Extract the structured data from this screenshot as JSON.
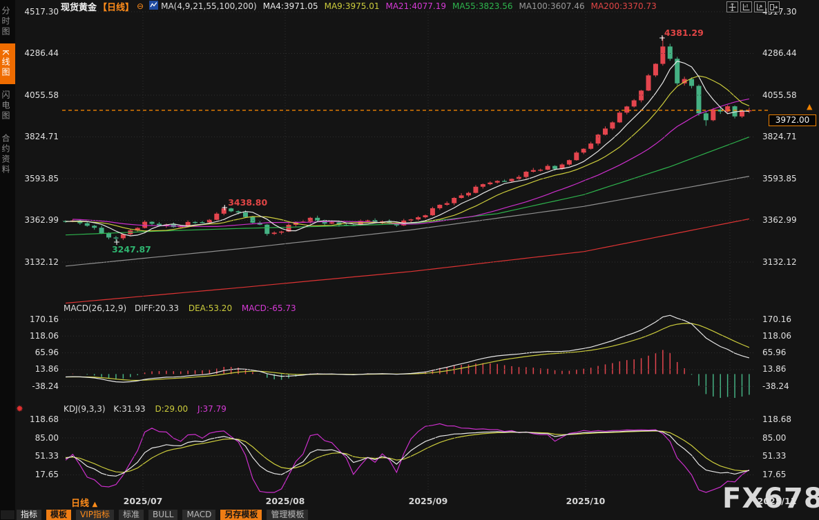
{
  "header": {
    "symbol": "现货黄金",
    "period_tag": "【日线】",
    "circle_icon": "⊖",
    "ma_label": "MA(4,9,21,55,100,200)",
    "ma_values": [
      {
        "label": "MA4:3971.05",
        "color": "#e8e8e8"
      },
      {
        "label": "MA9:3975.01",
        "color": "#cdcd3c"
      },
      {
        "label": "MA21:4077.19",
        "color": "#d63ad6"
      },
      {
        "label": "MA55:3823.56",
        "color": "#2eb44d"
      },
      {
        "label": "MA100:3607.46",
        "color": "#9a9a9a"
      },
      {
        "label": "MA200:3370.73",
        "color": "#e04545"
      }
    ]
  },
  "sidebar": {
    "items": [
      {
        "label": "分时图",
        "active": false
      },
      {
        "label": "K线图",
        "active": true
      },
      {
        "label": "闪电图",
        "active": false
      },
      {
        "label": "合约资料",
        "active": false
      }
    ]
  },
  "main_axis": {
    "labels": [
      "4517.30",
      "4286.44",
      "4055.58",
      "3824.71",
      "3593.85",
      "3362.99",
      "3132.12"
    ]
  },
  "markers": {
    "high": {
      "text": "4381.29",
      "index": 83,
      "color": "#e04545"
    },
    "swing_high": {
      "text": "3438.80",
      "index": 22,
      "color": "#e04545"
    },
    "swing_low": {
      "text": "3247.87",
      "index": 7,
      "color": "#2eb46f"
    },
    "current": {
      "text": "3972.00"
    },
    "current_arrow": "▲"
  },
  "macd_panel": {
    "legend": {
      "title": "MACD(26,12,9)",
      "diff": "DIFF:20.33",
      "dea": "DEA:53.20",
      "macd": "MACD:-65.73"
    },
    "axis": [
      "170.16",
      "118.06",
      "65.96",
      "13.86",
      "-38.24"
    ]
  },
  "kdj_panel": {
    "legend": {
      "title": "KDJ(9,3,3)",
      "k": "K:31.93",
      "d": "D:29.00",
      "j": "J:37.79"
    },
    "axis": [
      "118.68",
      "85.00",
      "51.33",
      "17.65"
    ]
  },
  "xaxis": {
    "labels": [
      "2025/07",
      "2025/08",
      "2025/09",
      "2025/10",
      "2025/11"
    ]
  },
  "period_button": {
    "label": "日线",
    "arrow": "▲"
  },
  "toolbar": {
    "tabs": [
      {
        "label": "指标",
        "style": "first"
      },
      {
        "label": "模板",
        "style": "hl"
      },
      {
        "label": "VIP指标",
        "style": "vip"
      },
      {
        "label": "标准",
        "style": ""
      },
      {
        "label": "BULL",
        "style": ""
      },
      {
        "label": "MACD",
        "style": ""
      },
      {
        "label": "另存模板",
        "style": "hl"
      },
      {
        "label": "管理模板",
        "style": ""
      }
    ]
  },
  "watermark": "FX678",
  "colors": {
    "up": "#e4454e",
    "down": "#45b183",
    "ma4": "#e8e8e8",
    "ma9": "#cdcd3c",
    "ma21": "#cc2fcc",
    "ma55": "#2eb44d",
    "ma100": "#909090",
    "ma200": "#dd3333",
    "grid": "#2f2f2f",
    "accent_orange": "#ef8200",
    "k_line": "#e8e8e8",
    "d_line": "#cdcd3c",
    "j_line": "#cc2fcc"
  },
  "chart_data": {
    "type": "candlestick",
    "title": "现货黄金 日线 (Spot Gold daily)",
    "x_months": [
      "2025/07",
      "2025/08",
      "2025/09",
      "2025/10",
      "2025/11"
    ],
    "price_axis": [
      4517.3,
      4286.44,
      4055.58,
      3824.71,
      3593.85,
      3362.99,
      3132.12
    ],
    "macd_axis": [
      170.16,
      118.06,
      65.96,
      13.86,
      -38.24
    ],
    "kdj_axis": [
      118.68,
      85.0,
      51.33,
      17.65
    ],
    "current_price": 3972.0,
    "high_price": 4381.29,
    "swing_high": 3438.8,
    "swing_low": 3247.87,
    "pre_closes": [
      3395,
      3400,
      3390,
      3380,
      3375,
      3385,
      3378,
      3370,
      3365,
      3372,
      3368,
      3360,
      3355,
      3362,
      3358,
      3352,
      3348,
      3355,
      3360,
      3362
    ],
    "candles": [
      [
        3360,
        3364,
        3350,
        3356
      ],
      [
        3356,
        3370,
        3353,
        3362
      ],
      [
        3362,
        3365,
        3338,
        3347
      ],
      [
        3347,
        3357,
        3328,
        3333
      ],
      [
        3333,
        3338,
        3311,
        3322
      ],
      [
        3322,
        3334,
        3287,
        3291
      ],
      [
        3291,
        3297,
        3258,
        3268
      ],
      [
        3268,
        3277,
        3247.87,
        3264
      ],
      [
        3264,
        3290,
        3254,
        3286
      ],
      [
        3286,
        3314,
        3280,
        3307
      ],
      [
        3307,
        3325,
        3301,
        3321
      ],
      [
        3321,
        3363,
        3318,
        3355
      ],
      [
        3355,
        3358,
        3335,
        3344
      ],
      [
        3344,
        3354,
        3328,
        3333
      ],
      [
        3333,
        3345,
        3322,
        3340
      ],
      [
        3340,
        3352,
        3322,
        3326
      ],
      [
        3326,
        3336,
        3318,
        3330
      ],
      [
        3330,
        3363,
        3327,
        3354
      ],
      [
        3354,
        3358,
        3344,
        3353
      ],
      [
        3353,
        3360,
        3346,
        3352
      ],
      [
        3352,
        3370,
        3346,
        3366
      ],
      [
        3366,
        3408,
        3363,
        3400
      ],
      [
        3400,
        3438.8,
        3391,
        3429
      ],
      [
        3429,
        3433,
        3408,
        3413
      ],
      [
        3413,
        3418,
        3396,
        3407
      ],
      [
        3407,
        3419,
        3377,
        3381
      ],
      [
        3381,
        3387,
        3342,
        3350
      ],
      [
        3350,
        3359,
        3336,
        3339
      ],
      [
        3339,
        3343,
        3278,
        3288
      ],
      [
        3288,
        3302,
        3282,
        3295
      ],
      [
        3295,
        3305,
        3285,
        3301
      ],
      [
        3301,
        3346,
        3298,
        3338
      ],
      [
        3338,
        3357,
        3329,
        3354
      ],
      [
        3354,
        3366,
        3349,
        3356
      ],
      [
        3356,
        3382,
        3345,
        3377
      ],
      [
        3377,
        3389,
        3357,
        3361
      ],
      [
        3361,
        3367,
        3337,
        3345
      ],
      [
        3345,
        3361,
        3342,
        3352
      ],
      [
        3352,
        3356,
        3328,
        3338
      ],
      [
        3338,
        3345,
        3331,
        3337
      ],
      [
        3337,
        3341,
        3331,
        3336
      ],
      [
        3336,
        3368,
        3333,
        3360
      ],
      [
        3360,
        3367,
        3351,
        3364
      ],
      [
        3364,
        3374,
        3346,
        3351
      ],
      [
        3351,
        3362,
        3340,
        3357
      ],
      [
        3357,
        3369,
        3342,
        3346
      ],
      [
        3346,
        3352,
        3327,
        3335
      ],
      [
        3335,
        3371,
        3332,
        3362
      ],
      [
        3362,
        3372,
        3352,
        3368
      ],
      [
        3368,
        3387,
        3362,
        3380
      ],
      [
        3380,
        3395,
        3374,
        3391
      ],
      [
        3391,
        3438,
        3388,
        3430
      ],
      [
        3430,
        3452,
        3421,
        3449
      ],
      [
        3449,
        3468,
        3444,
        3458
      ],
      [
        3458,
        3492,
        3447,
        3487
      ],
      [
        3487,
        3513,
        3483,
        3501
      ],
      [
        3501,
        3521,
        3493,
        3515
      ],
      [
        3515,
        3558,
        3512,
        3549
      ],
      [
        3549,
        3567,
        3539,
        3563
      ],
      [
        3563,
        3579,
        3557,
        3572
      ],
      [
        3572,
        3585,
        3566,
        3581
      ],
      [
        3581,
        3589,
        3577,
        3580
      ],
      [
        3580,
        3595,
        3571,
        3592
      ],
      [
        3592,
        3613,
        3587,
        3603
      ],
      [
        3603,
        3637,
        3592,
        3632
      ],
      [
        3632,
        3653,
        3628,
        3641
      ],
      [
        3641,
        3649,
        3633,
        3643
      ],
      [
        3643,
        3673,
        3640,
        3664
      ],
      [
        3664,
        3668,
        3638,
        3648
      ],
      [
        3648,
        3679,
        3642,
        3672
      ],
      [
        3672,
        3700,
        3666,
        3696
      ],
      [
        3696,
        3746,
        3693,
        3738
      ],
      [
        3738,
        3762,
        3729,
        3759
      ],
      [
        3759,
        3798,
        3754,
        3788
      ],
      [
        3788,
        3842,
        3777,
        3837
      ],
      [
        3837,
        3883,
        3833,
        3871
      ],
      [
        3871,
        3911,
        3863,
        3905
      ],
      [
        3905,
        3968,
        3902,
        3959
      ],
      [
        3959,
        3997,
        3949,
        3993
      ],
      [
        3993,
        4034,
        3987,
        4027
      ],
      [
        4027,
        4085,
        4016,
        4081
      ],
      [
        4081,
        4173,
        4078,
        4165
      ],
      [
        4165,
        4232,
        4156,
        4229
      ],
      [
        4229,
        4381.29,
        4219,
        4325
      ],
      [
        4325,
        4340,
        4246,
        4257
      ],
      [
        4257,
        4268,
        4110,
        4121
      ],
      [
        4121,
        4158,
        4109,
        4145
      ],
      [
        4145,
        4154,
        4093,
        4107
      ],
      [
        4107,
        4115,
        3942,
        3955
      ],
      [
        3955,
        3964,
        3886,
        3917
      ],
      [
        3917,
        3985,
        3911,
        3976
      ],
      [
        3976,
        3989,
        3952,
        3965
      ],
      [
        3965,
        4001,
        3958,
        3994
      ],
      [
        3994,
        3999,
        3927,
        3938
      ],
      [
        3938,
        3974,
        3930,
        3967
      ],
      [
        3967,
        3986,
        3956,
        3972
      ]
    ],
    "ma_long_series": [
      {
        "name": "MA55",
        "color_key": "ma55",
        "points": [
          [
            0,
            3282
          ],
          [
            12,
            3302
          ],
          [
            24,
            3318
          ],
          [
            36,
            3330
          ],
          [
            48,
            3345
          ],
          [
            60,
            3400
          ],
          [
            72,
            3505
          ],
          [
            84,
            3660
          ],
          [
            95,
            3824
          ]
        ]
      },
      {
        "name": "MA100",
        "color_key": "ma100",
        "points": [
          [
            0,
            3110
          ],
          [
            24,
            3205
          ],
          [
            48,
            3310
          ],
          [
            72,
            3440
          ],
          [
            95,
            3607
          ]
        ]
      },
      {
        "name": "MA200",
        "color_key": "ma200",
        "points": [
          [
            0,
            2905
          ],
          [
            24,
            2990
          ],
          [
            48,
            3080
          ],
          [
            72,
            3190
          ],
          [
            95,
            3371
          ]
        ]
      }
    ]
  }
}
